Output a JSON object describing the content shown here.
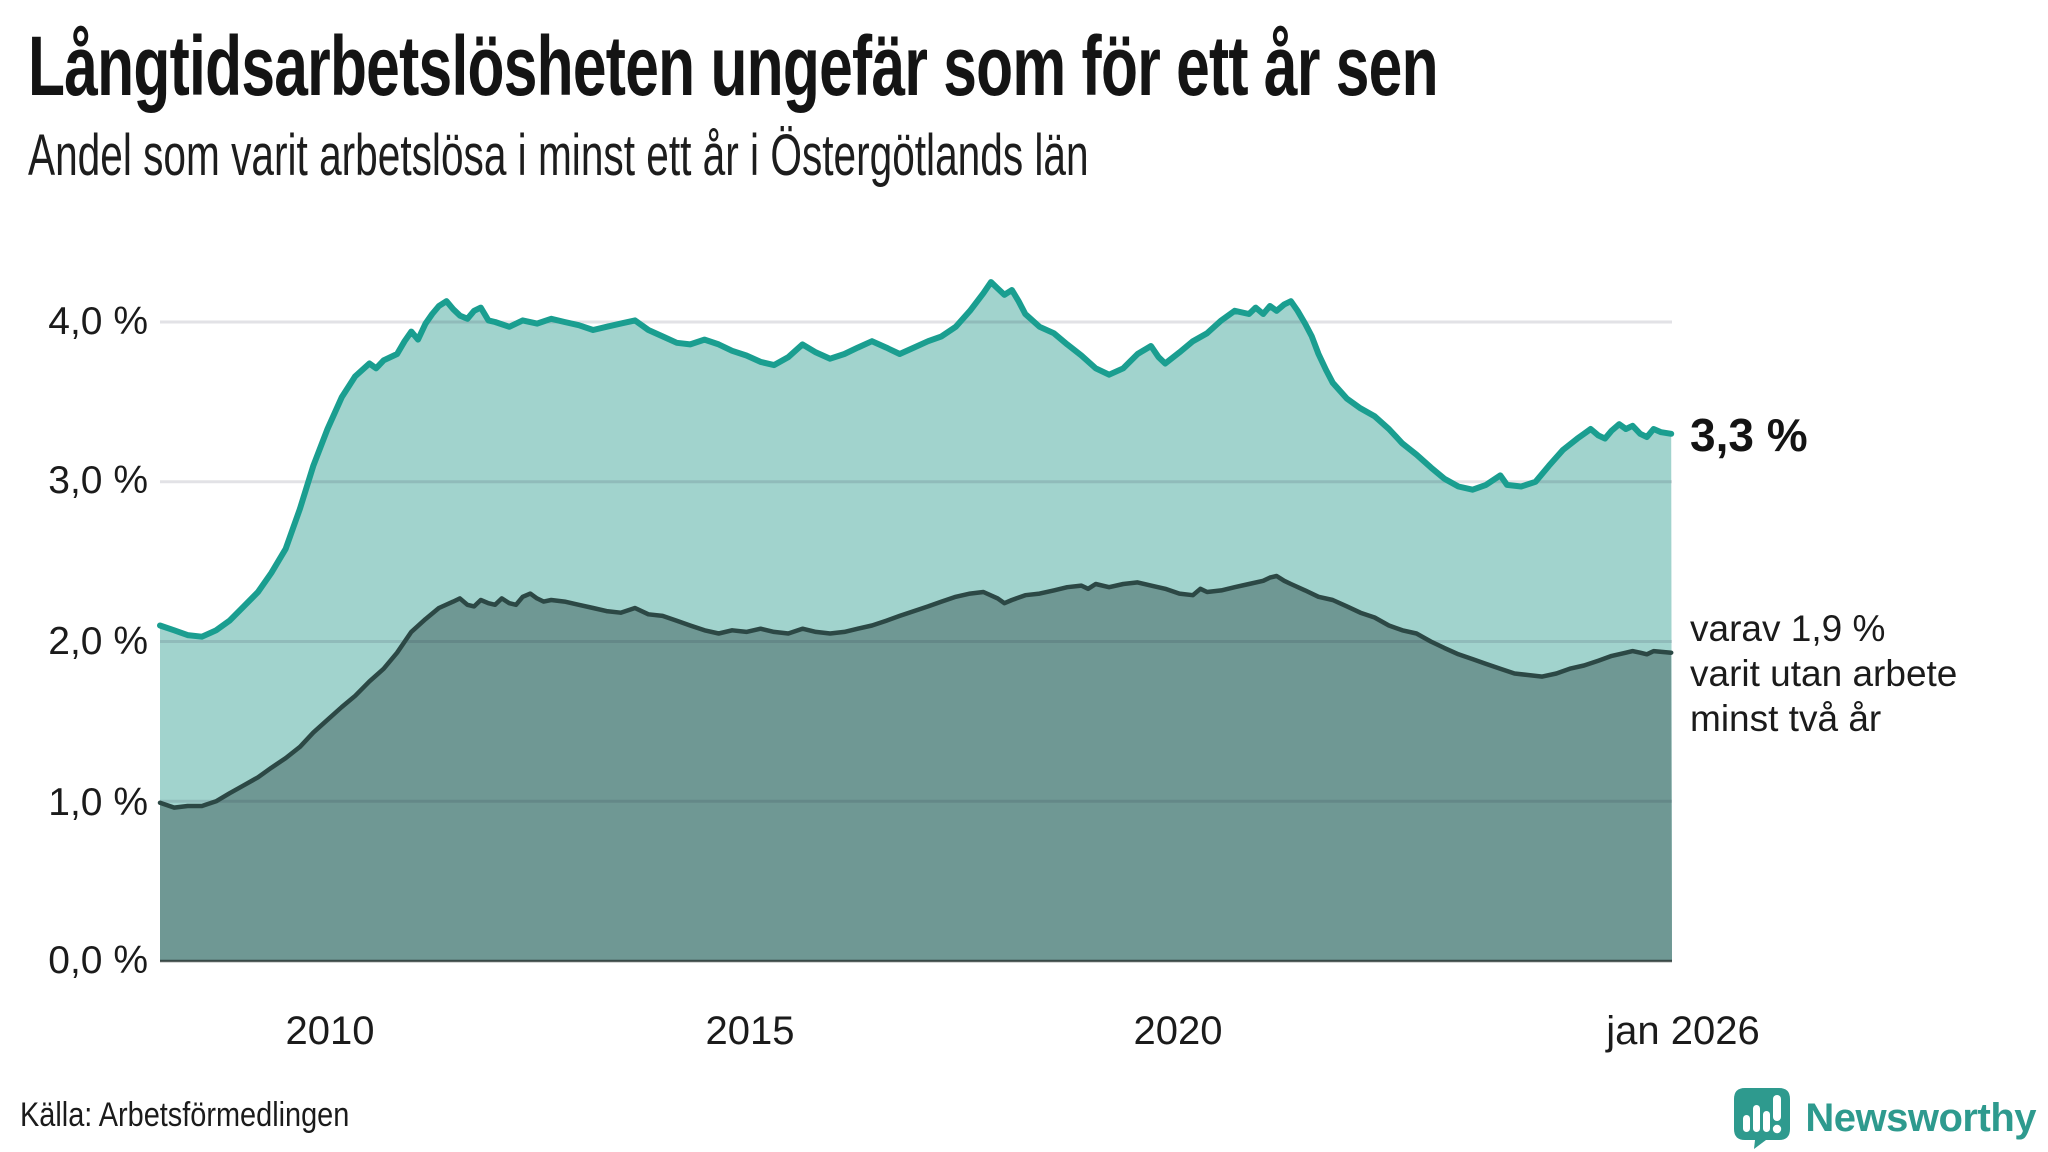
{
  "title": "Långtidsarbetslösheten ungefär som för ett år sen",
  "subtitle": "Andel som varit arbetslösa i minst ett år i Östergötlands län",
  "source": "Källa: Arbetsförmedlingen",
  "brand": {
    "name": "Newsworthy"
  },
  "annotations": {
    "latest_total": "3,3 %",
    "latest_note": "varav 1,9 %\nvarit utan arbete\nminst två år"
  },
  "axes": {
    "y_ticks": [
      {
        "label": "4,0 %",
        "value": 4.0
      },
      {
        "label": "3,0 %",
        "value": 3.0
      },
      {
        "label": "2,0 %",
        "value": 2.0
      },
      {
        "label": "1,0 %",
        "value": 1.0
      },
      {
        "label": "0,0 %",
        "value": 0.0
      }
    ],
    "x_ticks": [
      {
        "label": "2010",
        "year": 2010
      },
      {
        "label": "2015",
        "year": 2015
      },
      {
        "label": "2020",
        "year": 2020
      },
      {
        "label": "jan 2026",
        "year": 2026.04
      }
    ]
  },
  "colors": {
    "area_light": "#a1d3cd",
    "area_dark": "#6f9894",
    "line_teal": "#1a9e90",
    "line_dark": "#2c4845",
    "grid": "rgba(30,30,60,0.13)",
    "baseline": "rgba(42,55,53,0.8)",
    "brand_teal": "#2e9a8e"
  },
  "chart_data": {
    "type": "area",
    "title": "Långtidsarbetslösheten ungefär som för ett år sen",
    "subtitle": "Andel som varit arbetslösa i minst ett år i Östergötlands län",
    "unit": "%",
    "xlim": [
      2008.0,
      2026.05
    ],
    "ylim": [
      0,
      4.4
    ],
    "grid": "horizontal",
    "x_axis_ticks": [
      2010,
      2015,
      2020,
      2026.04
    ],
    "series": [
      {
        "name": "Andel arbetslösa minst ett år",
        "latest_value": 3.3,
        "latest_label": "3,3 %",
        "points": [
          [
            2008.0,
            2.1
          ],
          [
            2008.17,
            2.07
          ],
          [
            2008.33,
            2.04
          ],
          [
            2008.5,
            2.03
          ],
          [
            2008.67,
            2.07
          ],
          [
            2008.83,
            2.13
          ],
          [
            2009.0,
            2.22
          ],
          [
            2009.17,
            2.31
          ],
          [
            2009.33,
            2.43
          ],
          [
            2009.5,
            2.58
          ],
          [
            2009.67,
            2.83
          ],
          [
            2009.83,
            3.1
          ],
          [
            2010.0,
            3.33
          ],
          [
            2010.17,
            3.53
          ],
          [
            2010.33,
            3.66
          ],
          [
            2010.5,
            3.74
          ],
          [
            2010.58,
            3.71
          ],
          [
            2010.67,
            3.76
          ],
          [
            2010.83,
            3.8
          ],
          [
            2010.92,
            3.88
          ],
          [
            2011.0,
            3.94
          ],
          [
            2011.08,
            3.89
          ],
          [
            2011.17,
            3.99
          ],
          [
            2011.25,
            4.05
          ],
          [
            2011.33,
            4.1
          ],
          [
            2011.42,
            4.13
          ],
          [
            2011.5,
            4.08
          ],
          [
            2011.58,
            4.04
          ],
          [
            2011.67,
            4.02
          ],
          [
            2011.75,
            4.07
          ],
          [
            2011.83,
            4.09
          ],
          [
            2011.92,
            4.01
          ],
          [
            2012.0,
            4.0
          ],
          [
            2012.17,
            3.97
          ],
          [
            2012.33,
            4.01
          ],
          [
            2012.5,
            3.99
          ],
          [
            2012.67,
            4.02
          ],
          [
            2012.83,
            4.0
          ],
          [
            2013.0,
            3.98
          ],
          [
            2013.17,
            3.95
          ],
          [
            2013.33,
            3.97
          ],
          [
            2013.5,
            3.99
          ],
          [
            2013.67,
            4.01
          ],
          [
            2013.83,
            3.95
          ],
          [
            2014.0,
            3.91
          ],
          [
            2014.17,
            3.87
          ],
          [
            2014.33,
            3.86
          ],
          [
            2014.5,
            3.89
          ],
          [
            2014.67,
            3.86
          ],
          [
            2014.83,
            3.82
          ],
          [
            2015.0,
            3.79
          ],
          [
            2015.17,
            3.75
          ],
          [
            2015.33,
            3.73
          ],
          [
            2015.5,
            3.78
          ],
          [
            2015.67,
            3.86
          ],
          [
            2015.83,
            3.81
          ],
          [
            2016.0,
            3.77
          ],
          [
            2016.17,
            3.8
          ],
          [
            2016.33,
            3.84
          ],
          [
            2016.5,
            3.88
          ],
          [
            2016.67,
            3.84
          ],
          [
            2016.83,
            3.8
          ],
          [
            2017.0,
            3.84
          ],
          [
            2017.17,
            3.88
          ],
          [
            2017.33,
            3.91
          ],
          [
            2017.5,
            3.97
          ],
          [
            2017.67,
            4.07
          ],
          [
            2017.83,
            4.18
          ],
          [
            2017.92,
            4.25
          ],
          [
            2018.0,
            4.21
          ],
          [
            2018.08,
            4.17
          ],
          [
            2018.17,
            4.2
          ],
          [
            2018.25,
            4.13
          ],
          [
            2018.33,
            4.05
          ],
          [
            2018.5,
            3.97
          ],
          [
            2018.67,
            3.93
          ],
          [
            2018.83,
            3.86
          ],
          [
            2019.0,
            3.79
          ],
          [
            2019.17,
            3.71
          ],
          [
            2019.33,
            3.67
          ],
          [
            2019.5,
            3.71
          ],
          [
            2019.67,
            3.8
          ],
          [
            2019.83,
            3.85
          ],
          [
            2019.92,
            3.78
          ],
          [
            2020.0,
            3.74
          ],
          [
            2020.17,
            3.81
          ],
          [
            2020.33,
            3.88
          ],
          [
            2020.5,
            3.93
          ],
          [
            2020.67,
            4.01
          ],
          [
            2020.83,
            4.07
          ],
          [
            2021.0,
            4.05
          ],
          [
            2021.08,
            4.09
          ],
          [
            2021.17,
            4.05
          ],
          [
            2021.25,
            4.1
          ],
          [
            2021.33,
            4.07
          ],
          [
            2021.42,
            4.11
          ],
          [
            2021.5,
            4.13
          ],
          [
            2021.58,
            4.07
          ],
          [
            2021.67,
            3.99
          ],
          [
            2021.75,
            3.91
          ],
          [
            2021.83,
            3.8
          ],
          [
            2021.92,
            3.7
          ],
          [
            2022.0,
            3.62
          ],
          [
            2022.17,
            3.52
          ],
          [
            2022.33,
            3.46
          ],
          [
            2022.5,
            3.41
          ],
          [
            2022.67,
            3.33
          ],
          [
            2022.83,
            3.24
          ],
          [
            2023.0,
            3.17
          ],
          [
            2023.17,
            3.09
          ],
          [
            2023.33,
            3.02
          ],
          [
            2023.5,
            2.97
          ],
          [
            2023.67,
            2.95
          ],
          [
            2023.83,
            2.98
          ],
          [
            2024.0,
            3.04
          ],
          [
            2024.08,
            2.98
          ],
          [
            2024.25,
            2.97
          ],
          [
            2024.42,
            3.0
          ],
          [
            2024.58,
            3.1
          ],
          [
            2024.75,
            3.2
          ],
          [
            2024.92,
            3.27
          ],
          [
            2025.0,
            3.3
          ],
          [
            2025.08,
            3.33
          ],
          [
            2025.17,
            3.29
          ],
          [
            2025.25,
            3.27
          ],
          [
            2025.33,
            3.32
          ],
          [
            2025.42,
            3.36
          ],
          [
            2025.5,
            3.33
          ],
          [
            2025.58,
            3.35
          ],
          [
            2025.67,
            3.3
          ],
          [
            2025.75,
            3.28
          ],
          [
            2025.83,
            3.33
          ],
          [
            2025.92,
            3.31
          ],
          [
            2026.04,
            3.3
          ]
        ]
      },
      {
        "name": "varav utan arbete minst två år",
        "latest_value": 1.9,
        "latest_label": "1,9 %",
        "points": [
          [
            2008.0,
            0.99
          ],
          [
            2008.17,
            0.96
          ],
          [
            2008.33,
            0.97
          ],
          [
            2008.5,
            0.97
          ],
          [
            2008.67,
            1.0
          ],
          [
            2008.83,
            1.05
          ],
          [
            2009.0,
            1.1
          ],
          [
            2009.17,
            1.15
          ],
          [
            2009.33,
            1.21
          ],
          [
            2009.5,
            1.27
          ],
          [
            2009.67,
            1.34
          ],
          [
            2009.83,
            1.43
          ],
          [
            2010.0,
            1.51
          ],
          [
            2010.17,
            1.59
          ],
          [
            2010.33,
            1.66
          ],
          [
            2010.5,
            1.75
          ],
          [
            2010.67,
            1.83
          ],
          [
            2010.83,
            1.93
          ],
          [
            2011.0,
            2.06
          ],
          [
            2011.17,
            2.14
          ],
          [
            2011.33,
            2.21
          ],
          [
            2011.5,
            2.25
          ],
          [
            2011.58,
            2.27
          ],
          [
            2011.67,
            2.23
          ],
          [
            2011.75,
            2.22
          ],
          [
            2011.83,
            2.26
          ],
          [
            2011.92,
            2.24
          ],
          [
            2012.0,
            2.23
          ],
          [
            2012.08,
            2.27
          ],
          [
            2012.17,
            2.24
          ],
          [
            2012.25,
            2.23
          ],
          [
            2012.33,
            2.28
          ],
          [
            2012.42,
            2.3
          ],
          [
            2012.5,
            2.27
          ],
          [
            2012.58,
            2.25
          ],
          [
            2012.67,
            2.26
          ],
          [
            2012.83,
            2.25
          ],
          [
            2013.0,
            2.23
          ],
          [
            2013.17,
            2.21
          ],
          [
            2013.33,
            2.19
          ],
          [
            2013.5,
            2.18
          ],
          [
            2013.67,
            2.21
          ],
          [
            2013.83,
            2.17
          ],
          [
            2014.0,
            2.16
          ],
          [
            2014.17,
            2.13
          ],
          [
            2014.33,
            2.1
          ],
          [
            2014.5,
            2.07
          ],
          [
            2014.67,
            2.05
          ],
          [
            2014.83,
            2.07
          ],
          [
            2015.0,
            2.06
          ],
          [
            2015.17,
            2.08
          ],
          [
            2015.33,
            2.06
          ],
          [
            2015.5,
            2.05
          ],
          [
            2015.67,
            2.08
          ],
          [
            2015.83,
            2.06
          ],
          [
            2016.0,
            2.05
          ],
          [
            2016.17,
            2.06
          ],
          [
            2016.33,
            2.08
          ],
          [
            2016.5,
            2.1
          ],
          [
            2016.67,
            2.13
          ],
          [
            2016.83,
            2.16
          ],
          [
            2017.0,
            2.19
          ],
          [
            2017.17,
            2.22
          ],
          [
            2017.33,
            2.25
          ],
          [
            2017.5,
            2.28
          ],
          [
            2017.67,
            2.3
          ],
          [
            2017.83,
            2.31
          ],
          [
            2018.0,
            2.27
          ],
          [
            2018.08,
            2.24
          ],
          [
            2018.17,
            2.26
          ],
          [
            2018.33,
            2.29
          ],
          [
            2018.5,
            2.3
          ],
          [
            2018.67,
            2.32
          ],
          [
            2018.83,
            2.34
          ],
          [
            2019.0,
            2.35
          ],
          [
            2019.08,
            2.33
          ],
          [
            2019.17,
            2.36
          ],
          [
            2019.33,
            2.34
          ],
          [
            2019.5,
            2.36
          ],
          [
            2019.67,
            2.37
          ],
          [
            2019.83,
            2.35
          ],
          [
            2020.0,
            2.33
          ],
          [
            2020.17,
            2.3
          ],
          [
            2020.33,
            2.29
          ],
          [
            2020.42,
            2.33
          ],
          [
            2020.5,
            2.31
          ],
          [
            2020.67,
            2.32
          ],
          [
            2020.83,
            2.34
          ],
          [
            2021.0,
            2.36
          ],
          [
            2021.17,
            2.38
          ],
          [
            2021.25,
            2.4
          ],
          [
            2021.33,
            2.41
          ],
          [
            2021.42,
            2.38
          ],
          [
            2021.5,
            2.36
          ],
          [
            2021.67,
            2.32
          ],
          [
            2021.83,
            2.28
          ],
          [
            2022.0,
            2.26
          ],
          [
            2022.17,
            2.22
          ],
          [
            2022.33,
            2.18
          ],
          [
            2022.5,
            2.15
          ],
          [
            2022.67,
            2.1
          ],
          [
            2022.83,
            2.07
          ],
          [
            2023.0,
            2.05
          ],
          [
            2023.17,
            2.0
          ],
          [
            2023.33,
            1.96
          ],
          [
            2023.5,
            1.92
          ],
          [
            2023.67,
            1.89
          ],
          [
            2023.83,
            1.86
          ],
          [
            2024.0,
            1.83
          ],
          [
            2024.17,
            1.8
          ],
          [
            2024.33,
            1.79
          ],
          [
            2024.5,
            1.78
          ],
          [
            2024.67,
            1.8
          ],
          [
            2024.83,
            1.83
          ],
          [
            2025.0,
            1.85
          ],
          [
            2025.17,
            1.88
          ],
          [
            2025.33,
            1.91
          ],
          [
            2025.5,
            1.93
          ],
          [
            2025.58,
            1.94
          ],
          [
            2025.67,
            1.93
          ],
          [
            2025.75,
            1.92
          ],
          [
            2025.83,
            1.94
          ],
          [
            2026.04,
            1.93
          ]
        ]
      }
    ]
  }
}
